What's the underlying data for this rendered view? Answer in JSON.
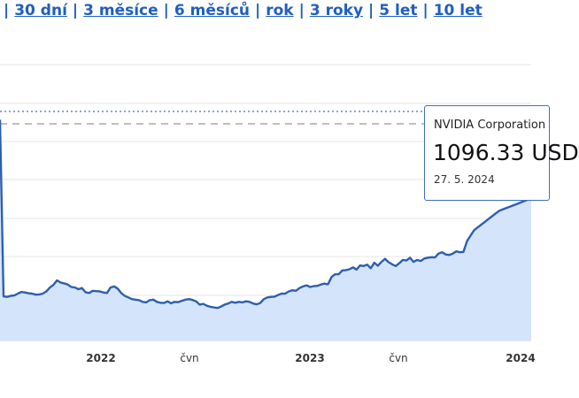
{
  "range_nav": {
    "separator": "|",
    "items": [
      "30 dní",
      "3 měsíce",
      "6 měsíců",
      "rok",
      "3 roky",
      "5 let",
      "10 let"
    ]
  },
  "tooltip": {
    "company": "NVIDIA Corporation",
    "value": "1096.33 USD",
    "date": "27. 5. 2024"
  },
  "chart_data": {
    "type": "area",
    "xlabels": [
      "2022",
      "čvn",
      "2023",
      "čvn",
      "2024"
    ],
    "line_color": "#2e5fae",
    "fill_color": "#cfe2fb",
    "x": [
      0,
      1,
      2,
      3,
      4,
      5,
      6,
      7,
      8,
      9,
      10,
      11,
      12,
      13,
      14,
      15,
      16,
      17,
      18,
      19,
      20,
      21,
      22,
      23,
      24,
      25,
      26,
      27,
      28,
      29,
      30,
      31,
      32,
      33,
      34,
      35,
      36,
      37,
      38,
      39,
      40,
      41,
      42,
      43,
      44,
      45,
      46,
      47,
      48,
      49,
      50,
      51,
      52,
      53,
      54,
      55,
      56,
      57,
      58,
      59,
      60,
      61,
      62,
      63,
      64,
      65,
      66,
      67,
      68,
      69,
      70,
      71,
      72,
      73,
      74,
      75,
      76,
      77,
      78,
      79,
      80,
      81,
      82,
      83,
      84,
      85,
      86,
      87,
      88,
      89,
      90,
      91,
      92,
      93,
      94,
      95,
      96,
      97,
      98,
      99,
      100,
      101,
      102,
      103,
      104,
      105,
      106,
      107,
      108,
      109,
      110,
      111,
      112,
      113,
      114,
      115,
      116,
      117,
      118,
      119,
      120,
      121,
      122,
      123,
      124,
      125,
      126,
      127,
      128,
      129,
      130,
      131,
      132,
      133,
      134,
      135,
      136,
      137,
      138,
      139,
      140,
      141,
      142,
      143,
      144,
      145,
      146,
      147,
      148,
      149
    ],
    "values": [
      800,
      160,
      158,
      162,
      163,
      170,
      176,
      174,
      171,
      170,
      166,
      167,
      170,
      178,
      192,
      202,
      218,
      210,
      207,
      203,
      194,
      192,
      186,
      190,
      175,
      172,
      180,
      179,
      178,
      174,
      172,
      192,
      196,
      188,
      172,
      162,
      156,
      150,
      148,
      146,
      140,
      138,
      146,
      148,
      140,
      137,
      136,
      142,
      135,
      140,
      139,
      144,
      148,
      150,
      147,
      142,
      130,
      133,
      126,
      122,
      120,
      118,
      123,
      130,
      134,
      140,
      137,
      140,
      138,
      142,
      140,
      134,
      131,
      136,
      150,
      156,
      158,
      159,
      165,
      170,
      170,
      178,
      182,
      180,
      190,
      196,
      200,
      194,
      197,
      198,
      203,
      206,
      204,
      230,
      240,
      240,
      254,
      255,
      258,
      265,
      257,
      272,
      270,
      275,
      262,
      282,
      271,
      285,
      296,
      284,
      276,
      270,
      280,
      292,
      290,
      300,
      285,
      292,
      288,
      297,
      300,
      302,
      301,
      315,
      320,
      312,
      310,
      315,
      323,
      320,
      321,
      360,
      380,
      400,
      410,
      420,
      430,
      440,
      450,
      460,
      470,
      475,
      480,
      485,
      490,
      495,
      500,
      505,
      510,
      515
    ],
    "ylim": [
      0,
      1000
    ],
    "reference_lines": [
      {
        "style": "dotted",
        "color": "#3d6fc4"
      },
      {
        "style": "dashed",
        "color": "#999999"
      }
    ]
  }
}
